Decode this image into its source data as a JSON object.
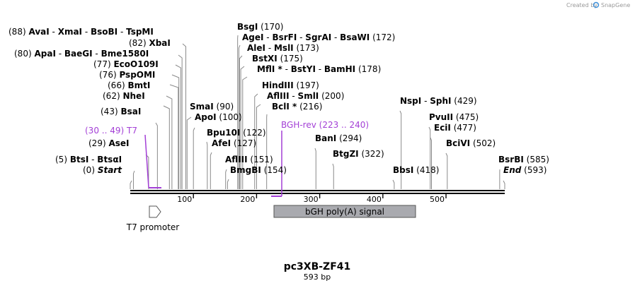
{
  "credit": {
    "prefix": "Created by",
    "brand": "SnapGene"
  },
  "map": {
    "name": "pc3XB-ZF41",
    "length_label": "593 bp",
    "length": 593,
    "ticks": [
      "100",
      "200",
      "300",
      "400",
      "500"
    ]
  },
  "enzymes": [
    {
      "pos": "(88)",
      "names": [
        "AvaI",
        "XmaI",
        "BsoBI",
        "TspMI"
      ],
      "site": 88
    },
    {
      "pos": "(82)",
      "names": [
        "XbaI"
      ],
      "site": 82
    },
    {
      "pos": "(80)",
      "names": [
        "ApaI",
        "BaeGI",
        "Bme1580I"
      ],
      "site": 80
    },
    {
      "pos": "(77)",
      "names": [
        "EcoO109I"
      ],
      "site": 77
    },
    {
      "pos": "(76)",
      "names": [
        "PspOMI"
      ],
      "site": 76
    },
    {
      "pos": "(66)",
      "names": [
        "BmtI"
      ],
      "site": 66
    },
    {
      "pos": "(62)",
      "names": [
        "NheI"
      ],
      "site": 62
    },
    {
      "pos": "(43)",
      "names": [
        "BsaI"
      ],
      "site": 43
    },
    {
      "pos": "(29)",
      "names": [
        "AseI"
      ],
      "site": 29
    },
    {
      "pos": "(5)",
      "names": [
        "BtsI",
        "BtsαI"
      ],
      "site": 5
    },
    {
      "pos": "(0)",
      "names": [
        "Start"
      ],
      "site": 0,
      "italic": true
    },
    {
      "pos": "(170)",
      "names": [
        "BsgI"
      ],
      "site": 170,
      "pos_after": true
    },
    {
      "pos": "(172)",
      "names": [
        "AgeI",
        "BsrFI",
        "SgrAI",
        "BsaWI"
      ],
      "site": 172,
      "pos_after": true
    },
    {
      "pos": "(173)",
      "names": [
        "AleI",
        "MslI"
      ],
      "site": 173,
      "pos_after": true
    },
    {
      "pos": "(175)",
      "names": [
        "BstXI"
      ],
      "site": 175,
      "pos_after": true
    },
    {
      "pos": "(178)",
      "names": [
        "MflI *",
        "BstYI",
        "BamHI"
      ],
      "site": 178,
      "pos_after": true
    },
    {
      "pos": "(197)",
      "names": [
        "HindIII"
      ],
      "site": 197,
      "pos_after": true
    },
    {
      "pos": "(200)",
      "names": [
        "AflIII",
        "SmlI"
      ],
      "site": 200,
      "pos_after": true
    },
    {
      "pos": "(216)",
      "names": [
        "BclI *"
      ],
      "site": 216,
      "pos_after": true
    },
    {
      "pos": "(90)",
      "names": [
        "SmaI"
      ],
      "site": 90,
      "pos_after": true
    },
    {
      "pos": "(100)",
      "names": [
        "ApoI"
      ],
      "site": 100,
      "pos_after": true
    },
    {
      "pos": "(122)",
      "names": [
        "Bpu10I"
      ],
      "site": 122,
      "pos_after": true
    },
    {
      "pos": "(127)",
      "names": [
        "AfeI"
      ],
      "site": 127,
      "pos_after": true
    },
    {
      "pos": "(151)",
      "names": [
        "AflIII"
      ],
      "site": 151,
      "pos_after": true
    },
    {
      "pos": "(154)",
      "names": [
        "BmgBI"
      ],
      "site": 154,
      "pos_after": true
    },
    {
      "pos": "(294)",
      "names": [
        "BanI"
      ],
      "site": 294,
      "pos_after": true
    },
    {
      "pos": "(322)",
      "names": [
        "BtgZI"
      ],
      "site": 322,
      "pos_after": true
    },
    {
      "pos": "(429)",
      "names": [
        "NspI",
        "SphI"
      ],
      "site": 429,
      "pos_after": true
    },
    {
      "pos": "(418)",
      "names": [
        "BbsI"
      ],
      "site": 418,
      "pos_after": true
    },
    {
      "pos": "(475)",
      "names": [
        "PvuII"
      ],
      "site": 475,
      "pos_after": true
    },
    {
      "pos": "(477)",
      "names": [
        "EciI"
      ],
      "site": 477,
      "pos_after": true
    },
    {
      "pos": "(502)",
      "names": [
        "BciVI"
      ],
      "site": 502,
      "pos_after": true
    },
    {
      "pos": "(585)",
      "names": [
        "BsrBI"
      ],
      "site": 585,
      "pos_after": true
    },
    {
      "pos": "(593)",
      "names": [
        "End"
      ],
      "site": 593,
      "pos_after": true,
      "italic": true
    }
  ],
  "primers": [
    {
      "name": "T7",
      "range": "(30 .. 49)",
      "start": 30,
      "end": 49,
      "color": "#a33fd6"
    },
    {
      "name": "BGH-rev",
      "range": "(223 .. 240)",
      "start": 223,
      "end": 240,
      "color": "#a33fd6"
    }
  ],
  "features": [
    {
      "label": "T7 promoter",
      "start": 30,
      "end": 48,
      "type": "promoter"
    },
    {
      "label": "bGH poly(A) signal",
      "start": 225,
      "end": 450,
      "type": "polyA",
      "color": "#a9aaaf"
    }
  ]
}
